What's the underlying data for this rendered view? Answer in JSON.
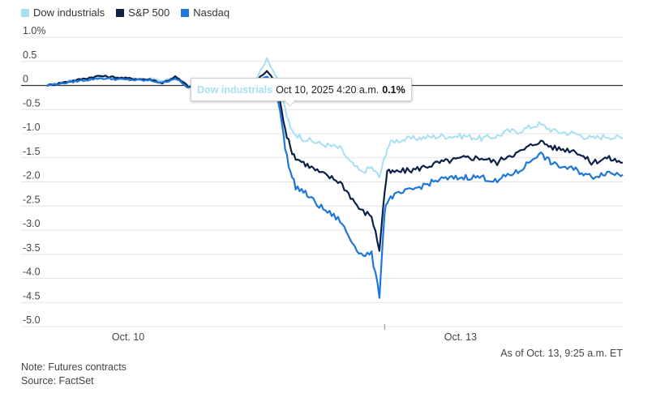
{
  "chart_data": {
    "type": "line",
    "ylim": [
      -5.0,
      1.0
    ],
    "yticks": [
      1.0,
      0.5,
      0,
      -0.5,
      -1.0,
      -1.5,
      -2.0,
      -2.5,
      -3.0,
      -3.5,
      -4.0,
      -4.5,
      -5.0
    ],
    "ytick_labels": [
      "1.0%",
      "0.5",
      "0",
      "-0.5",
      "-1.0",
      "-1.5",
      "-2.0",
      "-2.5",
      "-3.0",
      "-3.5",
      "-4.0",
      "-4.5",
      "-5.0"
    ],
    "xtick_labels": [
      "Oct. 10",
      "Oct. 13"
    ],
    "legend_position": "top-left",
    "grid": true,
    "series": [
      {
        "name": "Dow industrials",
        "color": "#a8dff3",
        "points": [
          [
            0.0,
            0.0
          ],
          [
            0.05,
            0.12
          ],
          [
            0.1,
            0.18
          ],
          [
            0.15,
            0.15
          ],
          [
            0.2,
            0.14
          ],
          [
            0.22,
            0.08
          ],
          [
            0.245,
            0.2
          ],
          [
            0.27,
            0.0
          ],
          [
            0.29,
            0.0
          ],
          [
            0.32,
            0.1
          ],
          [
            0.35,
            0.1
          ],
          [
            0.38,
            0.05
          ],
          [
            0.4,
            0.15
          ],
          [
            0.42,
            0.55
          ],
          [
            0.435,
            0.25
          ],
          [
            0.445,
            0.05
          ],
          [
            0.455,
            -0.5
          ],
          [
            0.465,
            -0.9
          ],
          [
            0.475,
            -1.0
          ],
          [
            0.49,
            -1.1
          ],
          [
            0.52,
            -1.2
          ],
          [
            0.56,
            -1.3
          ],
          [
            0.58,
            -1.6
          ],
          [
            0.6,
            -1.8
          ],
          [
            0.62,
            -1.7
          ],
          [
            0.635,
            -1.9
          ],
          [
            0.645,
            -1.5
          ],
          [
            0.65,
            -1.3
          ],
          [
            0.66,
            -1.15
          ],
          [
            0.7,
            -1.1
          ],
          [
            0.75,
            -1.05
          ],
          [
            0.8,
            -1.05
          ],
          [
            0.83,
            -1.1
          ],
          [
            0.86,
            -1.05
          ],
          [
            0.88,
            -0.95
          ],
          [
            0.9,
            -0.95
          ],
          [
            0.94,
            -0.8
          ],
          [
            0.97,
            -0.95
          ],
          [
            1.01,
            -1.0
          ],
          [
            1.04,
            -1.1
          ],
          [
            1.07,
            -1.05
          ],
          [
            1.1,
            -1.1
          ]
        ]
      },
      {
        "name": "S&P 500",
        "color": "#0b2147",
        "points": [
          [
            0.0,
            0.0
          ],
          [
            0.05,
            0.1
          ],
          [
            0.1,
            0.2
          ],
          [
            0.15,
            0.15
          ],
          [
            0.2,
            0.12
          ],
          [
            0.22,
            0.05
          ],
          [
            0.245,
            0.18
          ],
          [
            0.27,
            -0.02
          ],
          [
            0.29,
            -0.03
          ],
          [
            0.32,
            0.08
          ],
          [
            0.35,
            0.08
          ],
          [
            0.38,
            0.02
          ],
          [
            0.4,
            0.1
          ],
          [
            0.42,
            0.3
          ],
          [
            0.435,
            0.1
          ],
          [
            0.445,
            -0.3
          ],
          [
            0.455,
            -0.9
          ],
          [
            0.465,
            -1.3
          ],
          [
            0.475,
            -1.5
          ],
          [
            0.49,
            -1.6
          ],
          [
            0.52,
            -1.8
          ],
          [
            0.56,
            -2.0
          ],
          [
            0.58,
            -2.3
          ],
          [
            0.6,
            -2.6
          ],
          [
            0.62,
            -2.7
          ],
          [
            0.635,
            -3.4
          ],
          [
            0.645,
            -2.2
          ],
          [
            0.65,
            -1.8
          ],
          [
            0.66,
            -1.8
          ],
          [
            0.7,
            -1.75
          ],
          [
            0.75,
            -1.6
          ],
          [
            0.8,
            -1.5
          ],
          [
            0.83,
            -1.5
          ],
          [
            0.86,
            -1.6
          ],
          [
            0.88,
            -1.45
          ],
          [
            0.9,
            -1.4
          ],
          [
            0.94,
            -1.15
          ],
          [
            0.97,
            -1.3
          ],
          [
            1.01,
            -1.35
          ],
          [
            1.04,
            -1.6
          ],
          [
            1.07,
            -1.5
          ],
          [
            1.1,
            -1.6
          ]
        ]
      },
      {
        "name": "Nasdaq",
        "color": "#1f76d9",
        "points": [
          [
            0.0,
            0.0
          ],
          [
            0.05,
            0.08
          ],
          [
            0.1,
            0.15
          ],
          [
            0.15,
            0.12
          ],
          [
            0.2,
            0.1
          ],
          [
            0.22,
            0.05
          ],
          [
            0.245,
            0.15
          ],
          [
            0.27,
            -0.05
          ],
          [
            0.29,
            -0.05
          ],
          [
            0.32,
            0.05
          ],
          [
            0.35,
            0.05
          ],
          [
            0.38,
            0.0
          ],
          [
            0.4,
            0.05
          ],
          [
            0.42,
            0.2
          ],
          [
            0.435,
            0.0
          ],
          [
            0.445,
            -0.5
          ],
          [
            0.455,
            -1.3
          ],
          [
            0.465,
            -1.8
          ],
          [
            0.475,
            -2.1
          ],
          [
            0.49,
            -2.2
          ],
          [
            0.52,
            -2.5
          ],
          [
            0.56,
            -2.8
          ],
          [
            0.58,
            -3.2
          ],
          [
            0.6,
            -3.5
          ],
          [
            0.62,
            -3.5
          ],
          [
            0.635,
            -4.35
          ],
          [
            0.645,
            -2.6
          ],
          [
            0.65,
            -2.4
          ],
          [
            0.66,
            -2.3
          ],
          [
            0.7,
            -2.15
          ],
          [
            0.75,
            -1.95
          ],
          [
            0.8,
            -1.9
          ],
          [
            0.83,
            -1.9
          ],
          [
            0.86,
            -2.0
          ],
          [
            0.88,
            -1.85
          ],
          [
            0.9,
            -1.8
          ],
          [
            0.94,
            -1.4
          ],
          [
            0.97,
            -1.65
          ],
          [
            1.01,
            -1.75
          ],
          [
            1.04,
            -1.9
          ],
          [
            1.07,
            -1.8
          ],
          [
            1.1,
            -1.85
          ]
        ]
      }
    ],
    "x_markers": [
      0.645
    ],
    "tooltip": {
      "series": "Dow industrials",
      "time": "Oct 10, 2025 4:20 a.m.",
      "value": "0.1%"
    }
  },
  "as_of": "As of Oct. 13, 9:25 a.m. ET",
  "note": "Note: Futures contracts",
  "source": "Source: FactSet"
}
